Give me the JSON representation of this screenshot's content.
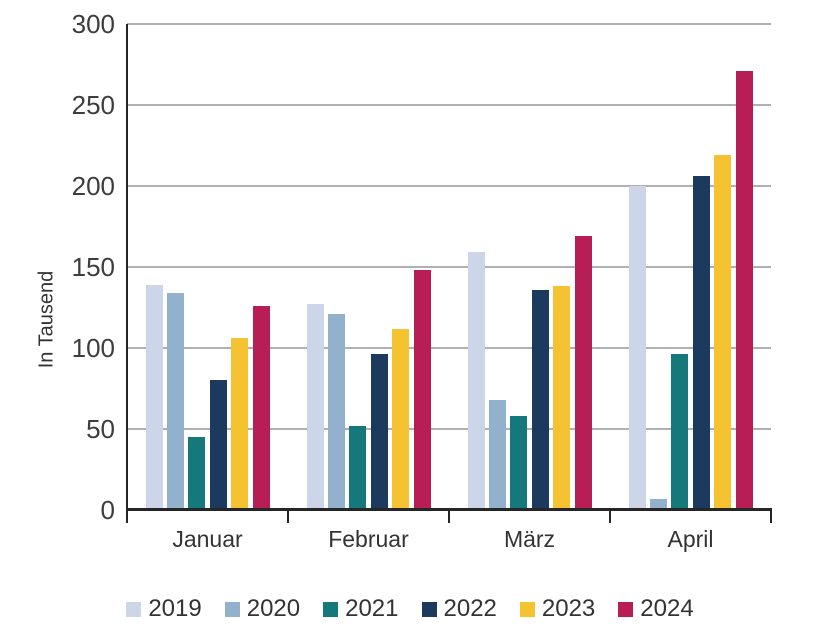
{
  "chart_data": {
    "type": "bar",
    "title": "",
    "xlabel": "",
    "ylabel": "In Tausend",
    "categories": [
      "Januar",
      "Februar",
      "März",
      "April"
    ],
    "series": [
      {
        "name": "2019",
        "color": "#ccd6e8",
        "values": [
          139,
          127,
          159,
          200
        ]
      },
      {
        "name": "2020",
        "color": "#92b1cd",
        "values": [
          134,
          121,
          68,
          7
        ]
      },
      {
        "name": "2021",
        "color": "#15787a",
        "values": [
          45,
          52,
          58,
          96
        ]
      },
      {
        "name": "2022",
        "color": "#1c3a5e",
        "values": [
          80,
          96,
          136,
          206
        ]
      },
      {
        "name": "2023",
        "color": "#f5c331",
        "values": [
          106,
          112,
          138,
          219
        ]
      },
      {
        "name": "2024",
        "color": "#b81e56",
        "values": [
          126,
          148,
          169,
          271
        ]
      }
    ],
    "ylim": [
      0,
      300
    ],
    "y_ticks": [
      0,
      50,
      100,
      150,
      200,
      250,
      300
    ],
    "grid": "horizontal",
    "legend_position": "bottom",
    "style": {
      "gridline_color": "#b0b0b0",
      "axis_color": "#262626",
      "tick_text_color": "#3d3d3d",
      "label_text_color": "#333333",
      "background": "#ffffff"
    }
  }
}
